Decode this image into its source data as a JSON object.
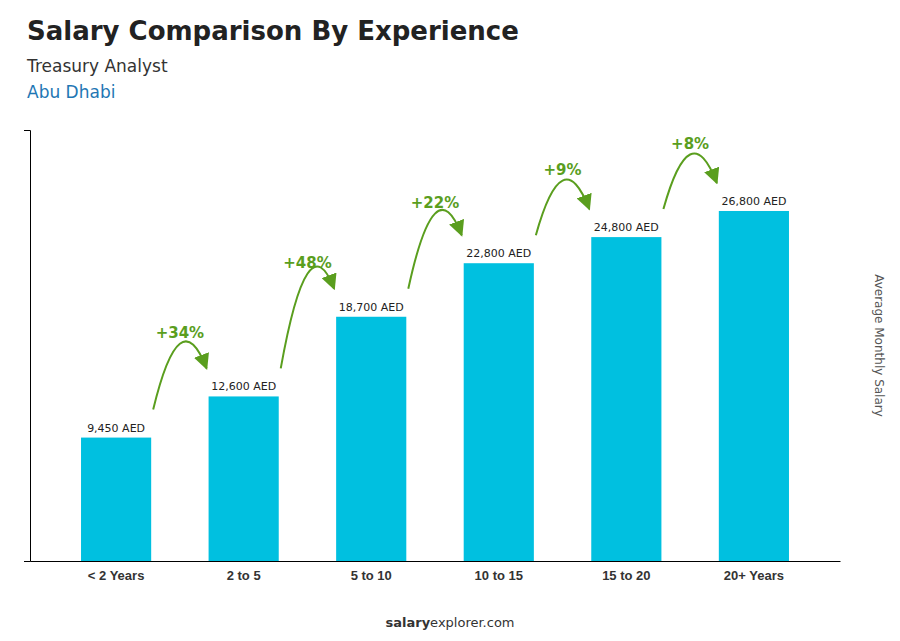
{
  "chart_data": {
    "type": "bar",
    "title": "Salary Comparison By Experience",
    "subtitle": [
      "Treasury Analyst",
      "Abu Dhabi"
    ],
    "y_label": "Average Monthly Salary",
    "categories": [
      "< 2 Years",
      "2 to 5",
      "5 to 10",
      "10 to 15",
      "15 to 20",
      "20+ Years"
    ],
    "values": [
      9450,
      12600,
      18700,
      22800,
      24800,
      26800
    ],
    "value_labels": [
      "9,450 AED",
      "12,600 AED",
      "18,700 AED",
      "22,800 AED",
      "24,800 AED",
      "26,800 AED"
    ],
    "data_labels": true,
    "annotations": [
      "+34%",
      "+48%",
      "+22%",
      "+9%",
      "+8%"
    ],
    "color": "#00C0E0",
    "ylim": [
      0,
      33000
    ],
    "tick_labels": "x",
    "footer": [
      "salary",
      "explorer.com"
    ]
  }
}
